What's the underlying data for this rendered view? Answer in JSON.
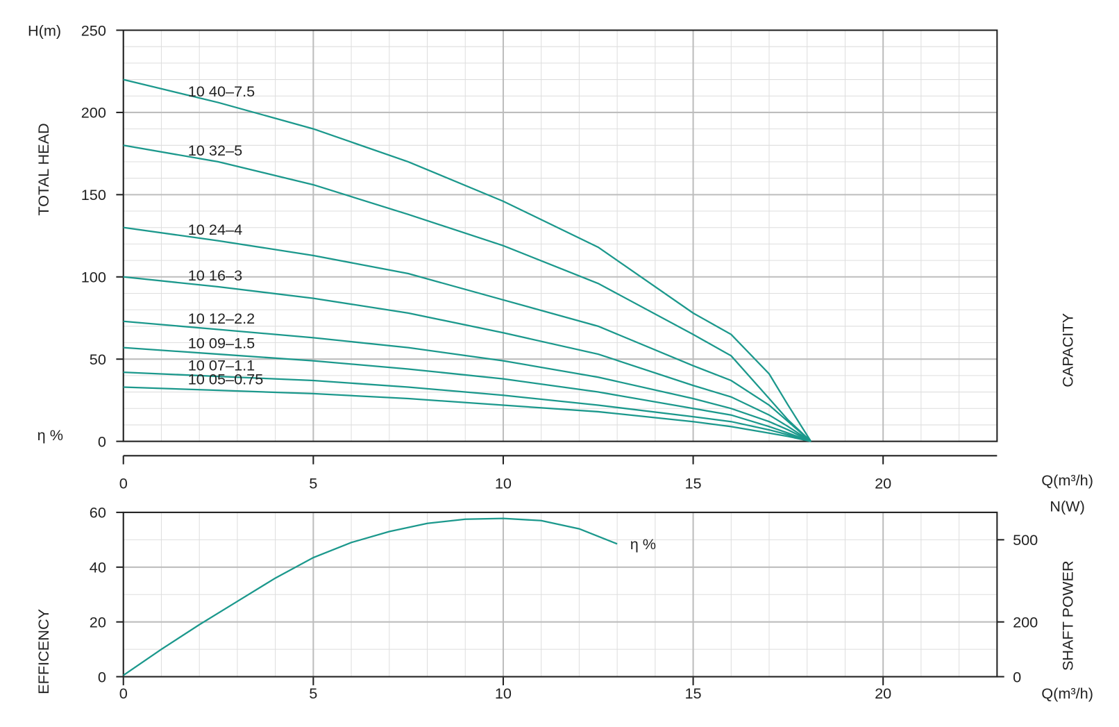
{
  "chart_data": [
    {
      "type": "line",
      "y_unit": "H(m)",
      "ylabel": "TOTAL HEAD",
      "xlabel": "CAPACITY",
      "x_unit": "Q(m³/h)",
      "x": [
        0,
        2.5,
        5,
        7.5,
        10,
        12.5,
        15,
        16,
        17,
        17.5,
        18.1
      ],
      "series": [
        {
          "name": "10 40–7.5",
          "color": "#1b988c",
          "values": [
            220,
            206,
            190,
            170,
            146,
            118,
            78,
            65,
            41,
            22,
            0
          ]
        },
        {
          "name": "10 32–5",
          "color": "#1b988c",
          "values": [
            180,
            170,
            156,
            138,
            119,
            96,
            65,
            52,
            26,
            13,
            0
          ]
        },
        {
          "name": "10 24–4",
          "color": "#1b988c",
          "values": [
            130,
            122,
            113,
            102,
            86,
            70,
            46,
            37,
            22,
            12,
            0
          ]
        },
        {
          "name": "10 16–3",
          "color": "#1b988c",
          "values": [
            100,
            94,
            87,
            78,
            66,
            53,
            34,
            27,
            16,
            9,
            0
          ]
        },
        {
          "name": "10 12–2.2",
          "color": "#1b988c",
          "values": [
            73,
            68,
            63,
            57,
            49,
            39,
            26,
            20,
            12,
            7,
            0
          ]
        },
        {
          "name": "10 09–1.5",
          "color": "#1b988c",
          "values": [
            57,
            53,
            49,
            44,
            38,
            30,
            20,
            16,
            9,
            5,
            0
          ]
        },
        {
          "name": "10 07–1.1",
          "color": "#1b988c",
          "values": [
            42,
            39.5,
            37,
            33,
            28,
            22,
            15,
            12,
            7,
            4,
            0
          ]
        },
        {
          "name": "10 05–0.75",
          "color": "#1b988c",
          "values": [
            33,
            31,
            29,
            26,
            22,
            18,
            12,
            9,
            5,
            3,
            0
          ]
        }
      ],
      "xlim": [
        0,
        23
      ],
      "xticks": [
        0,
        5,
        10,
        15,
        20
      ],
      "ylim": [
        0,
        250
      ],
      "yticks": [
        0,
        50,
        100,
        150,
        200,
        250
      ],
      "grid": true,
      "minor_x_step": 1,
      "minor_y_step": 10
    },
    {
      "type": "line",
      "axis_symbol": "η %",
      "ylabel": "EFFICENCY",
      "y2label": "SHAFT POWER",
      "y2_unit": "N(W)",
      "x_unit": "Q(m³/h)",
      "x": [
        0,
        1,
        2,
        3,
        4,
        5,
        6,
        7,
        8,
        9,
        10,
        11,
        12,
        13
      ],
      "series": [
        {
          "name": "η %",
          "color": "#1b988c",
          "values": [
            0.5,
            10,
            19,
            27.5,
            36,
            43.5,
            49,
            53,
            56,
            57.5,
            57.8,
            57,
            54,
            48.5
          ]
        }
      ],
      "xlim": [
        0,
        23
      ],
      "xticks": [
        0,
        5,
        10,
        15,
        20
      ],
      "ylim": [
        0,
        60
      ],
      "yticks": [
        0,
        20,
        40,
        60
      ],
      "y2lim": [
        0,
        600
      ],
      "y2ticks": [
        0,
        200,
        500
      ],
      "grid": true,
      "minor_x_step": 1,
      "minor_y_step": 10
    }
  ]
}
